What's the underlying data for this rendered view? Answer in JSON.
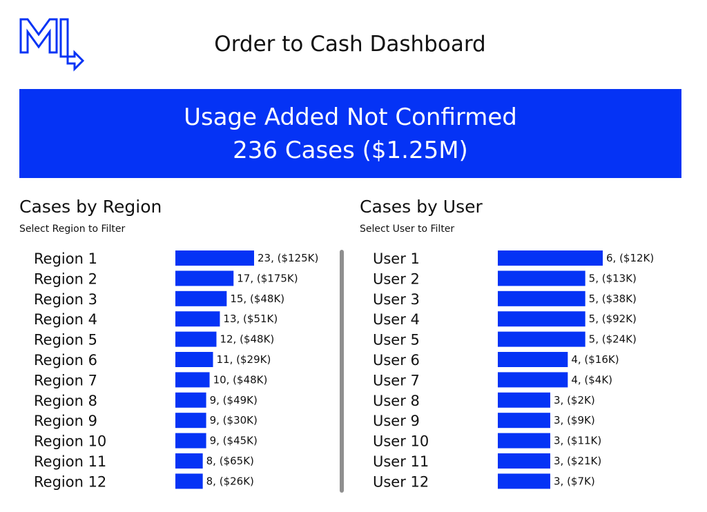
{
  "header": {
    "title": "Order to Cash Dashboard",
    "logo_icon": "m-logo-arrow-icon"
  },
  "banner": {
    "line1": "Usage Added Not Confirmed",
    "line2": "236 Cases ($1.25M)"
  },
  "colors": {
    "accent": "#0533f5",
    "divider": "#8f8f8f",
    "text": "#111111"
  },
  "chart_data": [
    {
      "type": "bar",
      "orientation": "horizontal",
      "title": "Cases by Region",
      "subtitle": "Select Region to Filter",
      "categories": [
        "Region 1",
        "Region 2",
        "Region 3",
        "Region 4",
        "Region 5",
        "Region 6",
        "Region 7",
        "Region 8",
        "Region 9",
        "Region 10",
        "Region 11",
        "Region 12"
      ],
      "values": [
        23,
        17,
        15,
        13,
        12,
        11,
        10,
        9,
        9,
        9,
        8,
        8
      ],
      "data_labels": [
        "23, ($125K)",
        "17, ($175K)",
        "15, ($48K)",
        "13, ($51K)",
        "12, ($48K)",
        "11, ($29K)",
        "10, ($48K)",
        "9, ($49K)",
        "9, ($30K)",
        "9, ($45K)",
        "8, ($65K)",
        "8, ($26K)"
      ],
      "xlim": [
        0,
        23
      ],
      "grid": false
    },
    {
      "type": "bar",
      "orientation": "horizontal",
      "title": "Cases by User",
      "subtitle": "Select User to Filter",
      "categories": [
        "User 1",
        "User 2",
        "User 3",
        "User 4",
        "User 5",
        "User 6",
        "User 7",
        "User 8",
        "User 9",
        "User 10",
        "User 11",
        "User 12"
      ],
      "values": [
        6,
        5,
        5,
        5,
        5,
        4,
        4,
        3,
        3,
        3,
        3,
        3
      ],
      "data_labels": [
        "6, ($12K)",
        "5, ($13K)",
        "5, ($38K)",
        "5, ($92K)",
        "5, ($24K)",
        "4, ($16K)",
        "4, ($4K)",
        "3, ($2K)",
        "3, ($9K)",
        "3, ($11K)",
        "3, ($21K)",
        "3, ($7K)"
      ],
      "xlim": [
        0,
        6
      ],
      "grid": false
    }
  ]
}
